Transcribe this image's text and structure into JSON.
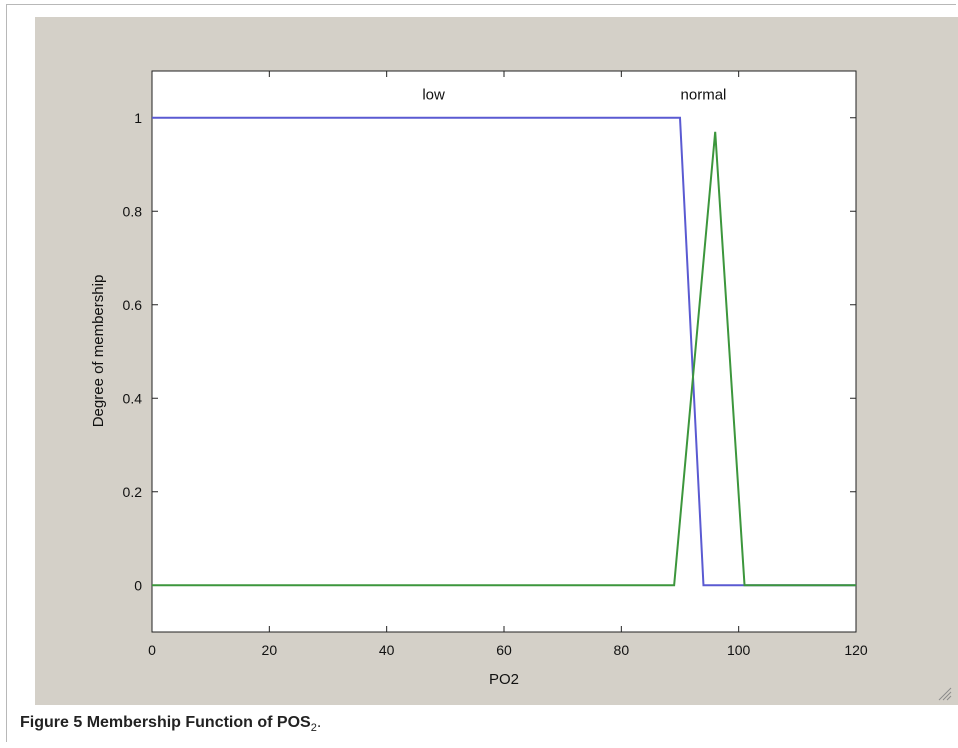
{
  "caption": {
    "figure_label": "Figure 5",
    "text": "Membership Function of POS",
    "subscript": "2",
    "suffix": "."
  },
  "chart_data": {
    "type": "line",
    "title": "",
    "xlabel": "PO2",
    "ylabel": "Degree of membership",
    "xlim": [
      0,
      120
    ],
    "ylim": [
      -0.1,
      1.1
    ],
    "xticks": [
      0,
      20,
      40,
      60,
      80,
      100,
      120
    ],
    "yticks": [
      0,
      0.2,
      0.4,
      0.6,
      0.8,
      1
    ],
    "grid": false,
    "series": [
      {
        "name": "low",
        "color": "#5a5ad2",
        "x": [
          0,
          90,
          94,
          120
        ],
        "y": [
          1,
          1,
          0,
          0
        ],
        "label_at": [
          48,
          1.05
        ]
      },
      {
        "name": "normal",
        "color": "#3c963c",
        "x": [
          0,
          89,
          96,
          101,
          120
        ],
        "y": [
          0,
          0,
          0.97,
          0,
          0
        ],
        "label_at": [
          94,
          1.05
        ]
      }
    ]
  }
}
